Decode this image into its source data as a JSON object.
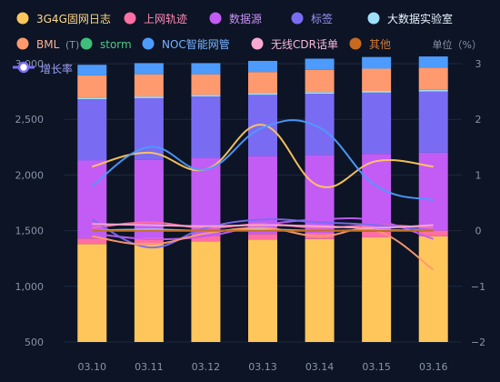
{
  "chart_data": {
    "type": "bar",
    "stacked": true,
    "categories": [
      "03.10",
      "03.11",
      "03.12",
      "03.13",
      "03.14",
      "03.15",
      "03.16"
    ],
    "y_left": {
      "ticks": [
        "500",
        "1,000",
        "1,500",
        "2,000",
        "2,500",
        "3,000"
      ],
      "min": 500,
      "max": 3000
    },
    "y_right": {
      "label": "单位（%）",
      "ticks": [
        "−2",
        "−1",
        "0",
        "1",
        "2",
        "3"
      ],
      "min": -2,
      "max": 3
    },
    "y_left_unit": "(T)",
    "bar_series": [
      {
        "name": "3G4G固网日志",
        "color": "#ffc65c",
        "values": [
          880,
          890,
          905,
          920,
          925,
          940,
          950
        ]
      },
      {
        "name": "上网轨迹",
        "color": "#ff6fa3",
        "values": [
          50,
          50,
          50,
          50,
          55,
          50,
          50
        ]
      },
      {
        "name": "数据源",
        "color": "#c35cf5",
        "values": [
          700,
          700,
          700,
          700,
          700,
          700,
          700
        ]
      },
      {
        "name": "标签",
        "color": "#7a6cf2",
        "values": [
          550,
          550,
          550,
          550,
          550,
          550,
          550
        ]
      },
      {
        "name": "大数据实验室",
        "color": "#9fe0fa",
        "values": [
          15,
          15,
          15,
          15,
          15,
          15,
          15
        ]
      },
      {
        "name": "BML",
        "color": "#ff9a6e",
        "values": [
          200,
          200,
          185,
          190,
          200,
          200,
          200
        ]
      },
      {
        "name": "storm",
        "color": "#3fbf7a",
        "values": [
          0,
          0,
          0,
          0,
          0,
          0,
          0
        ]
      },
      {
        "name": "NOC智能网管",
        "color": "#4d9bff",
        "values": [
          95,
          100,
          100,
          100,
          100,
          105,
          100
        ]
      },
      {
        "name": "无线CDR话单",
        "color": "#f7a8d0",
        "values": [
          0,
          0,
          0,
          0,
          0,
          0,
          0
        ]
      },
      {
        "name": "其他",
        "color": "#c86a1e",
        "values": [
          0,
          0,
          0,
          0,
          0,
          0,
          0
        ]
      }
    ],
    "line_series": [
      {
        "name": "3G4G固网日志",
        "color": "#ffc65c",
        "values": [
          1.15,
          1.4,
          1.1,
          1.9,
          0.8,
          1.25,
          1.15
        ]
      },
      {
        "name": "上网轨迹",
        "color": "#ff6fa3",
        "values": [
          0.05,
          0.15,
          0.05,
          0.12,
          0.05,
          0.1,
          0.05
        ]
      },
      {
        "name": "数据源",
        "color": "#c35cf5",
        "values": [
          -0.05,
          -0.15,
          -0.1,
          0.1,
          0.2,
          0.18,
          -0.15
        ]
      },
      {
        "name": "标签",
        "color": "#7a6cf2",
        "values": [
          0.2,
          -0.3,
          0.05,
          0.2,
          0.15,
          0.1,
          0.0
        ]
      },
      {
        "name": "大数据实验室",
        "color": "#9fe0fa",
        "values": [
          0.0,
          0.02,
          0.0,
          0.02,
          0.0,
          0.01,
          0.0
        ]
      },
      {
        "name": "BML",
        "color": "#ff9a6e",
        "values": [
          -0.1,
          -0.25,
          -0.05,
          0.05,
          -0.1,
          0.0,
          -0.7
        ]
      },
      {
        "name": "storm",
        "color": "#3fbf7a",
        "values": [
          0,
          0,
          0,
          0,
          0,
          0,
          0
        ]
      },
      {
        "name": "NOC智能网管",
        "color": "#4d9bff",
        "values": [
          0.8,
          1.5,
          1.1,
          1.85,
          1.85,
          0.8,
          0.55
        ]
      },
      {
        "name": "无线CDR话单",
        "color": "#f7a8d0",
        "values": [
          0.12,
          0.1,
          0.08,
          0.1,
          0.08,
          0.05,
          0.1
        ]
      },
      {
        "name": "其他",
        "color": "#c86a1e",
        "values": [
          0,
          0,
          0,
          0,
          0,
          0,
          0
        ]
      }
    ],
    "legend_rows": [
      [
        {
          "name": "3G4G固网日志",
          "color": "#ffc65c",
          "text_color": "#ffd88a"
        },
        {
          "name": "上网轨迹",
          "color": "#ff6fa3",
          "text_color": "#ff8ab5"
        },
        {
          "name": "数据源",
          "color": "#c35cf5",
          "text_color": "#c990f5"
        },
        {
          "name": "标签",
          "color": "#7a6cf2",
          "text_color": "#9d93f5"
        },
        {
          "name": "大数据实验室",
          "color": "#9fe0fa",
          "text_color": "#e8f4ff"
        }
      ],
      [
        {
          "name": "BML",
          "color": "#ff9a6e",
          "text_color": "#ffb094"
        },
        {
          "name": "storm",
          "color": "#3fbf7a",
          "text_color": "#4fc98a"
        },
        {
          "name": "NOC智能网管",
          "color": "#4d9bff",
          "text_color": "#78b2ff"
        },
        {
          "name": "无线CDR话单",
          "color": "#f7a8d0",
          "text_color": "#f7b9d8"
        },
        {
          "name": "其他",
          "color": "#c86a1e",
          "text_color": "#d07a34"
        }
      ]
    ],
    "growth_legend": {
      "name": "增长率",
      "color": "#7a6cf2"
    },
    "grid": true
  }
}
